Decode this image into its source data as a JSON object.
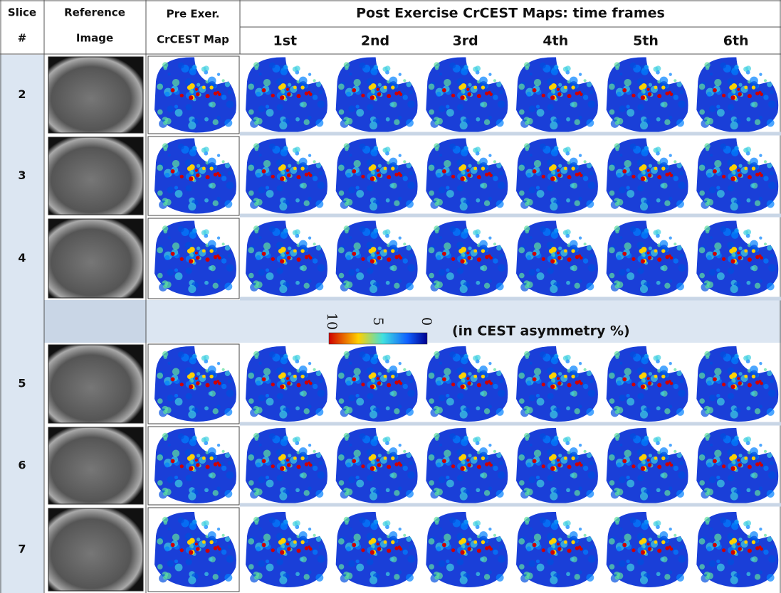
{
  "header": {
    "slice": [
      "Slice",
      "#"
    ],
    "reference": [
      "Reference",
      "Image"
    ],
    "pre": [
      "Pre Exer.",
      "CrCEST Map"
    ],
    "post": "Post Exercise CrCEST Maps: time frames",
    "frames": [
      "1st",
      "2nd",
      "3rd",
      "4th",
      "5th",
      "6th"
    ]
  },
  "rows": [
    2,
    3,
    4,
    5,
    6,
    7
  ],
  "colorbar": {
    "ticks": [
      "10",
      "5",
      "0"
    ],
    "unit": "(in CEST asymmetry %)"
  }
}
